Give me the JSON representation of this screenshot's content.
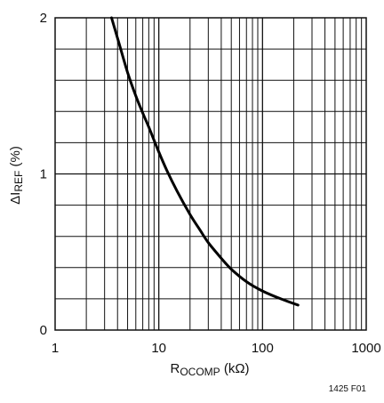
{
  "chart_data": {
    "type": "line",
    "x_scale": "log",
    "xlim": [
      1,
      1000
    ],
    "ylim": [
      0,
      2
    ],
    "grid": true,
    "x_tick_labels": [
      "1",
      "10",
      "100",
      "1000"
    ],
    "y_tick_labels": [
      "0",
      "1",
      "2"
    ],
    "xlabel": {
      "main": "R",
      "sub": "OCOMP",
      "unit": " (kΩ)"
    },
    "ylabel": {
      "main": "ΔI",
      "sub": "REF",
      "unit": " (%)"
    },
    "series": [
      {
        "x": [
          3.5,
          4,
          5,
          6,
          7,
          8,
          10,
          12,
          15,
          20,
          25,
          30,
          40,
          50,
          70,
          100,
          150,
          220
        ],
        "y": [
          2.0,
          1.87,
          1.65,
          1.5,
          1.39,
          1.3,
          1.14,
          1.02,
          0.89,
          0.74,
          0.64,
          0.56,
          0.46,
          0.39,
          0.31,
          0.25,
          0.2,
          0.16
        ]
      }
    ]
  },
  "figure_label": "1425 F01"
}
